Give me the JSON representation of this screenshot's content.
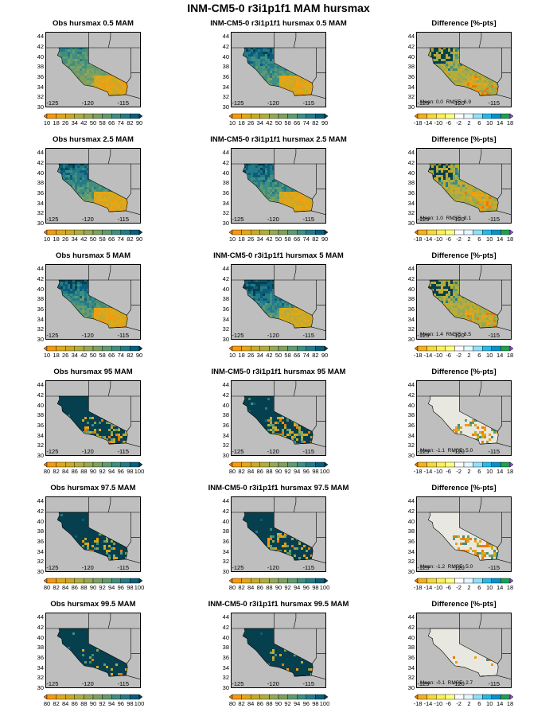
{
  "title": "INM-CM5-0 r3i1p1f1 MAM hursmax",
  "lat_ticks": [
    "44",
    "42",
    "40",
    "38",
    "36",
    "34",
    "32",
    "30"
  ],
  "lon_ticks": [
    "-125",
    "-120",
    "-115"
  ],
  "colorbars": {
    "low": {
      "labels": [
        "10",
        "18",
        "26",
        "34",
        "42",
        "50",
        "58",
        "66",
        "74",
        "82",
        "90"
      ],
      "colors": [
        "#f07800",
        "#f59a10",
        "#e0a818",
        "#c8aa28",
        "#b0ad40",
        "#95a855",
        "#7ea060",
        "#629a70",
        "#3f8e80",
        "#257a88",
        "#0a5e7a",
        "#06404e"
      ]
    },
    "high": {
      "labels": [
        "80",
        "82",
        "84",
        "86",
        "88",
        "90",
        "92",
        "94",
        "96",
        "98",
        "100"
      ],
      "colors": [
        "#f07800",
        "#f59a10",
        "#e0a818",
        "#c8aa28",
        "#b0ad40",
        "#95a855",
        "#7ea060",
        "#629a70",
        "#3f8e80",
        "#257a88",
        "#0a5e7a",
        "#06404e"
      ]
    },
    "diff": {
      "labels": [
        "-18",
        "-14",
        "-10",
        "-6",
        "-2",
        "2",
        "6",
        "10",
        "14",
        "18"
      ],
      "colors": [
        "#f07800",
        "#f4b020",
        "#f8d838",
        "#fcf058",
        "#ffff80",
        "#ffffff",
        "#e6f8ff",
        "#90e0f8",
        "#28b8e8",
        "#0890c8",
        "#20a050",
        "#b040f0"
      ]
    }
  },
  "rows": [
    {
      "obs": "Obs hursmax 0.5 MAM",
      "model": "INM-CM5-0 r3i1p1f1 hursmax 0.5 MAM",
      "diff": "Difference [%-pts]",
      "stats": "Mean: 0.0  RMSE: 6.9",
      "scale": "low"
    },
    {
      "obs": "Obs hursmax 2.5 MAM",
      "model": "INM-CM5-0 r3i1p1f1 hursmax 2.5 MAM",
      "diff": "Difference [%-pts]",
      "stats": "Mean: 1.0  RMSE: 8.1",
      "scale": "low"
    },
    {
      "obs": "Obs hursmax 5 MAM",
      "model": "INM-CM5-0 r3i1p1f1 hursmax 5 MAM",
      "diff": "Difference [%-pts]",
      "stats": "Mean: 1.4  RMSE: 8.5",
      "scale": "low"
    },
    {
      "obs": "Obs hursmax 95 MAM",
      "model": "INM-CM5-0 r3i1p1f1 hursmax 95 MAM",
      "diff": "Difference [%-pts]",
      "stats": "Mean: -1.1  RMSE: 5.0",
      "scale": "high"
    },
    {
      "obs": "Obs hursmax 97.5 MAM",
      "model": "INM-CM5-0 r3i1p1f1 hursmax 97.5 MAM",
      "diff": "Difference [%-pts]",
      "stats": "Mean: -1.2  RMSE: 5.0",
      "scale": "high"
    },
    {
      "obs": "Obs hursmax 99.5 MAM",
      "model": "INM-CM5-0 r3i1p1f1 hursmax 99.5 MAM",
      "diff": "Difference [%-pts]",
      "stats": "Mean: -0.1  RMSE: 2.7",
      "scale": "high"
    }
  ]
}
